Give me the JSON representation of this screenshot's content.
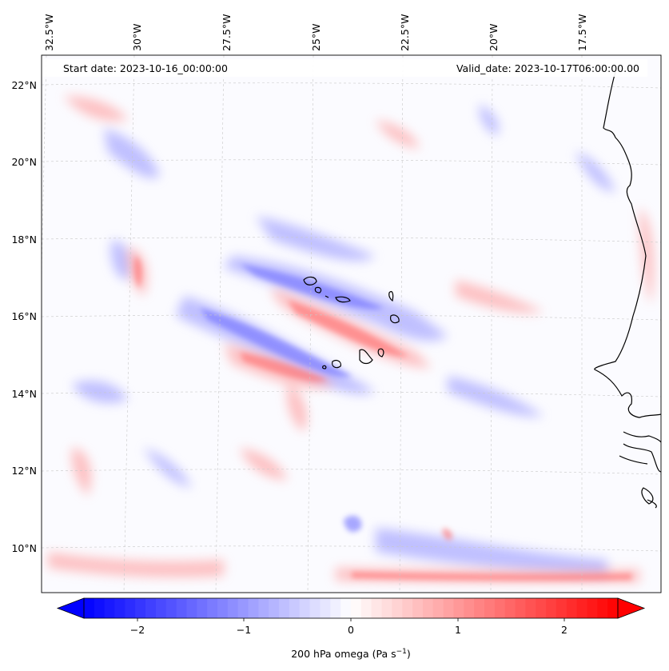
{
  "header": {
    "start_date": "Start date: 2023-10-16_00:00:00",
    "valid_date": "Valid_date: 2023-10-17T06:00:00.00"
  },
  "map": {
    "region": "Cape Verde / NW Africa",
    "lon_labels": [
      "32.5°W",
      "30°W",
      "27.5°W",
      "25°W",
      "22.5°W",
      "20°W",
      "17.5°W"
    ],
    "lat_labels": [
      "22°N",
      "20°N",
      "18°N",
      "16°N",
      "14°N",
      "12°N",
      "10°N"
    ],
    "field": "200 hPa omega"
  },
  "colorbar": {
    "label": "200 hPa omega (Pa s",
    "label_sup": "−1",
    "label_end": ")",
    "ticks": [
      "−2",
      "−1",
      "0",
      "1",
      "2"
    ],
    "vmin": -2.6,
    "vmax": 2.6,
    "colors": {
      "negative": "#0000ff",
      "neutral": "#ffffff",
      "positive": "#ff0000"
    }
  },
  "chart_data": {
    "type": "heatmap",
    "title": "200 hPa omega",
    "x_axis": "longitude",
    "y_axis": "latitude",
    "xlim": [
      -32.5,
      -15.0
    ],
    "ylim": [
      9.0,
      22.5
    ],
    "x_ticks": [
      "32.5°W",
      "30°W",
      "27.5°W",
      "25°W",
      "22.5°W",
      "20°W",
      "17.5°W"
    ],
    "y_ticks": [
      "22°N",
      "20°N",
      "18°N",
      "16°N",
      "14°N",
      "12°N",
      "10°N"
    ],
    "colorbar_range": [
      -2.6,
      2.6
    ],
    "colorbar_ticks": [
      -2,
      -1,
      0,
      1,
      2
    ],
    "units": "Pa s^-1",
    "colormap": "bwr"
  }
}
